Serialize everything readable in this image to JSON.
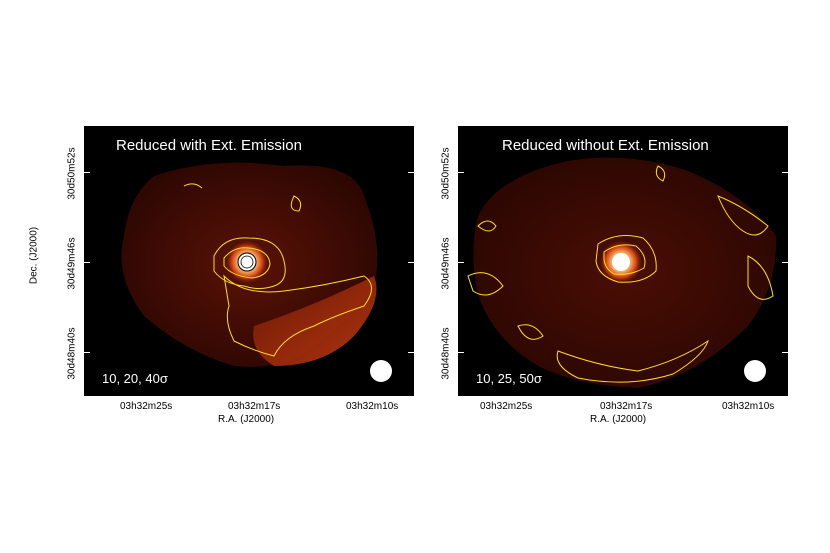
{
  "panels": [
    {
      "title": "Reduced with Ext. Emission",
      "contours": "10, 20, 40σ",
      "y_ticks": [
        "30d50m52s",
        "30d49m46s",
        "30d48m40s"
      ],
      "x_ticks": [
        "03h32m25s",
        "03h32m17s",
        "03h32m10s"
      ],
      "x_axis_title": "R.A. (J2000)"
    },
    {
      "title": "Reduced without Ext. Emission",
      "contours": "10, 25, 50σ",
      "y_ticks": [
        "30d50m52s",
        "30d49m46s",
        "30d48m40s"
      ],
      "x_ticks": [
        "03h32m25s",
        "03h32m17s",
        "03h32m10s"
      ],
      "x_axis_title": "R.A. (J2000)"
    }
  ],
  "y_axis_title": "Dec. (J2000)",
  "colors": {
    "background": "#000000",
    "map": "#3a0a02",
    "contour": "#ffdd22",
    "beam": "#ffffff"
  }
}
